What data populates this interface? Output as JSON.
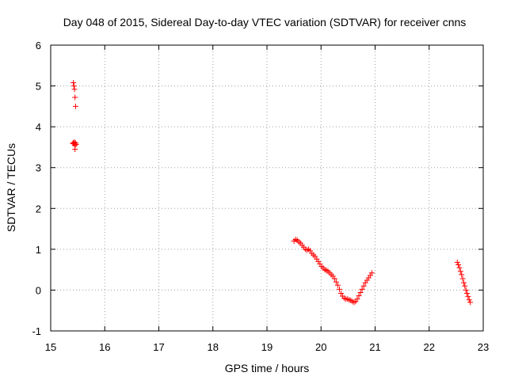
{
  "chart_data": {
    "type": "scatter",
    "title": "Day 048 of 2015, Sidereal Day-to-day VTEC variation (SDTVAR) for receiver cnns",
    "xlabel": "GPS time / hours",
    "ylabel": "SDTVAR / TECUs",
    "xlim": [
      15,
      23
    ],
    "ylim": [
      -1,
      6
    ],
    "xticks": [
      15,
      16,
      17,
      18,
      19,
      20,
      21,
      22,
      23
    ],
    "yticks": [
      -1,
      0,
      1,
      2,
      3,
      4,
      5,
      6
    ],
    "grid": true,
    "legend": "none",
    "marker": "+",
    "marker_color": "#ff0000",
    "series": [
      {
        "points": [
          [
            15.42,
            5.08
          ],
          [
            15.43,
            5.0
          ],
          [
            15.44,
            4.92
          ],
          [
            15.45,
            4.72
          ],
          [
            15.46,
            4.5
          ],
          [
            15.41,
            3.59
          ],
          [
            15.42,
            3.61
          ],
          [
            15.43,
            3.58
          ],
          [
            15.44,
            3.62
          ],
          [
            15.45,
            3.55
          ],
          [
            15.46,
            3.6
          ],
          [
            15.47,
            3.57
          ],
          [
            15.45,
            3.45
          ],
          [
            19.5,
            1.2
          ],
          [
            19.53,
            1.24
          ],
          [
            19.56,
            1.22
          ],
          [
            19.59,
            1.18
          ],
          [
            19.62,
            1.15
          ],
          [
            19.65,
            1.1
          ],
          [
            19.68,
            1.05
          ],
          [
            19.71,
            1.0
          ],
          [
            19.74,
            0.98
          ],
          [
            19.77,
            1.0
          ],
          [
            19.8,
            0.96
          ],
          [
            19.83,
            0.9
          ],
          [
            19.86,
            0.86
          ],
          [
            19.89,
            0.82
          ],
          [
            19.92,
            0.76
          ],
          [
            19.95,
            0.7
          ],
          [
            19.98,
            0.64
          ],
          [
            20.01,
            0.58
          ],
          [
            20.04,
            0.54
          ],
          [
            20.07,
            0.5
          ],
          [
            20.1,
            0.48
          ],
          [
            20.13,
            0.46
          ],
          [
            20.16,
            0.42
          ],
          [
            20.19,
            0.38
          ],
          [
            20.22,
            0.34
          ],
          [
            20.25,
            0.28
          ],
          [
            20.28,
            0.2
          ],
          [
            20.31,
            0.12
          ],
          [
            20.34,
            0.02
          ],
          [
            20.37,
            -0.08
          ],
          [
            20.4,
            -0.15
          ],
          [
            20.43,
            -0.2
          ],
          [
            20.46,
            -0.22
          ],
          [
            20.49,
            -0.22
          ],
          [
            20.52,
            -0.24
          ],
          [
            20.55,
            -0.25
          ],
          [
            20.58,
            -0.28
          ],
          [
            20.61,
            -0.3
          ],
          [
            20.64,
            -0.28
          ],
          [
            20.67,
            -0.22
          ],
          [
            20.7,
            -0.14
          ],
          [
            20.73,
            -0.06
          ],
          [
            20.76,
            0.02
          ],
          [
            20.79,
            0.1
          ],
          [
            20.82,
            0.18
          ],
          [
            20.85,
            0.24
          ],
          [
            20.88,
            0.3
          ],
          [
            20.91,
            0.36
          ],
          [
            20.94,
            0.42
          ],
          [
            22.52,
            0.68
          ],
          [
            22.54,
            0.62
          ],
          [
            22.56,
            0.55
          ],
          [
            22.58,
            0.46
          ],
          [
            22.6,
            0.38
          ],
          [
            22.62,
            0.28
          ],
          [
            22.64,
            0.18
          ],
          [
            22.66,
            0.1
          ],
          [
            22.68,
            0.0
          ],
          [
            22.7,
            -0.08
          ],
          [
            22.72,
            -0.16
          ],
          [
            22.74,
            -0.24
          ],
          [
            22.76,
            -0.3
          ]
        ]
      }
    ]
  }
}
